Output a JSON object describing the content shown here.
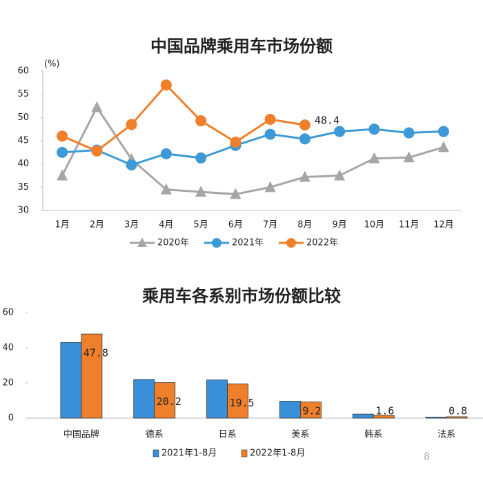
{
  "chart_data": [
    {
      "type": "line",
      "title": "中国品牌乘用车市场份额",
      "y_label": "(%)",
      "categories": [
        "1月",
        "2月",
        "3月",
        "4月",
        "5月",
        "6月",
        "7月",
        "8月",
        "9月",
        "10月",
        "11月",
        "12月"
      ],
      "ylim": [
        30,
        60
      ],
      "yticks": [
        30,
        35,
        40,
        45,
        50,
        55,
        60
      ],
      "grid": false,
      "series": [
        {
          "name": "2020年",
          "color": "#a6a6a6",
          "marker": "triangle",
          "values": [
            37.5,
            52.2,
            41,
            34.5,
            34,
            33.5,
            35,
            37.2,
            37.5,
            41.2,
            41.4,
            43.6
          ]
        },
        {
          "name": "2021年",
          "color": "#3d9ad6",
          "marker": "circle",
          "values": [
            42.5,
            43,
            39.8,
            42.2,
            41.3,
            44,
            46.4,
            45.4,
            47,
            47.5,
            46.7,
            47
          ]
        },
        {
          "name": "2022年",
          "color": "#f07f2b",
          "marker": "circle",
          "values": [
            46,
            42.8,
            48.5,
            57,
            49.3,
            44.7,
            49.6,
            48.4,
            null,
            null,
            null,
            null
          ],
          "value_labels": [
            null,
            null,
            null,
            null,
            null,
            null,
            null,
            "48.4",
            null,
            null,
            null,
            null
          ]
        }
      ]
    },
    {
      "type": "bar",
      "title": "乘用车各系别市场份额比较",
      "categories": [
        "中国品牌",
        "德系",
        "日系",
        "美系",
        "韩系",
        "法系"
      ],
      "ylim": [
        0,
        60
      ],
      "yticks": [
        0,
        20,
        40,
        60
      ],
      "grid": false,
      "series": [
        {
          "name": "2021年1-8月",
          "color": "#3a8fd9",
          "values": [
            43,
            22,
            21.7,
            9.6,
            2.3,
            0.6
          ]
        },
        {
          "name": "2022年1-8月",
          "color": "#f07f2b",
          "values": [
            47.8,
            20.2,
            19.5,
            9.2,
            1.6,
            0.8
          ],
          "value_labels": [
            "47.8",
            "20.2",
            "19.5",
            "9.2",
            "1.6",
            "0.8"
          ]
        }
      ]
    }
  ],
  "page_number": "8"
}
